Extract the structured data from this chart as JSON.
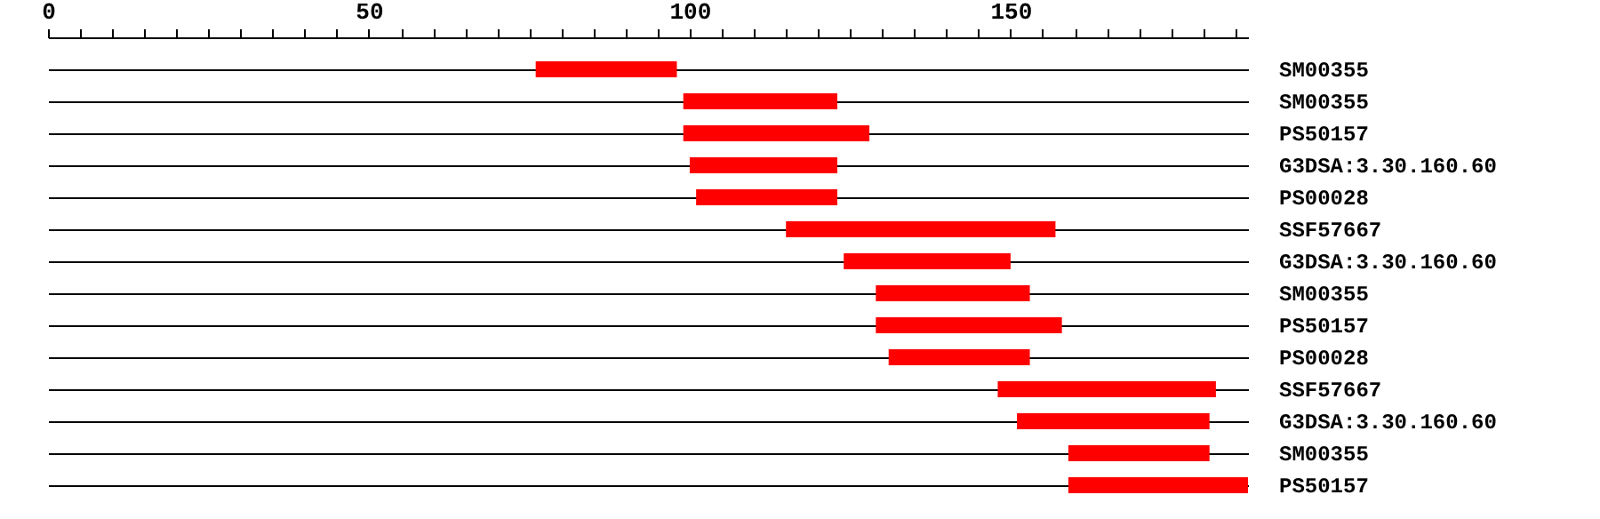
{
  "chart_data": {
    "type": "bar",
    "orientation": "horizontal",
    "color": "#ff0000",
    "grid": "y",
    "categories": [
      "SM00355",
      "SM00355",
      "PS50157",
      "G3DSA:3.30.160.60",
      "PS00028",
      "SSF57667",
      "G3DSA:3.30.160.60",
      "SM00355",
      "PS50157",
      "PS00028",
      "SSF57667",
      "G3DSA:3.30.160.60",
      "SM00355",
      "PS50157"
    ],
    "base": [
      76,
      99,
      99,
      100,
      101,
      115,
      124,
      129,
      129,
      131,
      148,
      151,
      159,
      159
    ],
    "values": [
      22,
      24,
      29,
      23,
      22,
      42,
      26,
      24,
      29,
      22,
      34,
      30,
      22,
      28
    ],
    "xlim": [
      0,
      187
    ],
    "xticks": [
      0,
      {
        "value": 5,
        "label": null
      },
      {
        "value": 10,
        "label": null
      },
      {
        "value": 15,
        "label": null
      },
      {
        "value": 20,
        "label": null
      },
      {
        "value": 25,
        "label": null
      },
      {
        "value": 30,
        "label": null
      },
      {
        "value": 35,
        "label": null
      },
      {
        "value": 40,
        "label": null
      },
      {
        "value": 45,
        "label": null
      },
      50,
      {
        "value": 55,
        "label": null
      },
      {
        "value": 60,
        "label": null
      },
      {
        "value": 65,
        "label": null
      },
      {
        "value": 70,
        "label": null
      },
      {
        "value": 75,
        "label": null
      },
      {
        "value": 80,
        "label": null
      },
      {
        "value": 85,
        "label": null
      },
      {
        "value": 90,
        "label": null
      },
      {
        "value": 95,
        "label": null
      },
      100,
      {
        "value": 105,
        "label": null
      },
      {
        "value": 110,
        "label": null
      },
      {
        "value": 115,
        "label": null
      },
      {
        "value": 120,
        "label": null
      },
      {
        "value": 125,
        "label": null
      },
      {
        "value": 130,
        "label": null
      },
      {
        "value": 135,
        "label": null
      },
      {
        "value": 140,
        "label": null
      },
      {
        "value": 145,
        "label": null
      },
      150,
      {
        "value": 155,
        "label": null
      },
      {
        "value": 160,
        "label": null
      },
      {
        "value": 165,
        "label": null
      },
      {
        "value": 170,
        "label": null
      },
      {
        "value": 175,
        "label": null
      },
      {
        "value": 180,
        "label": null
      },
      {
        "value": 185,
        "label": null
      }
    ]
  }
}
